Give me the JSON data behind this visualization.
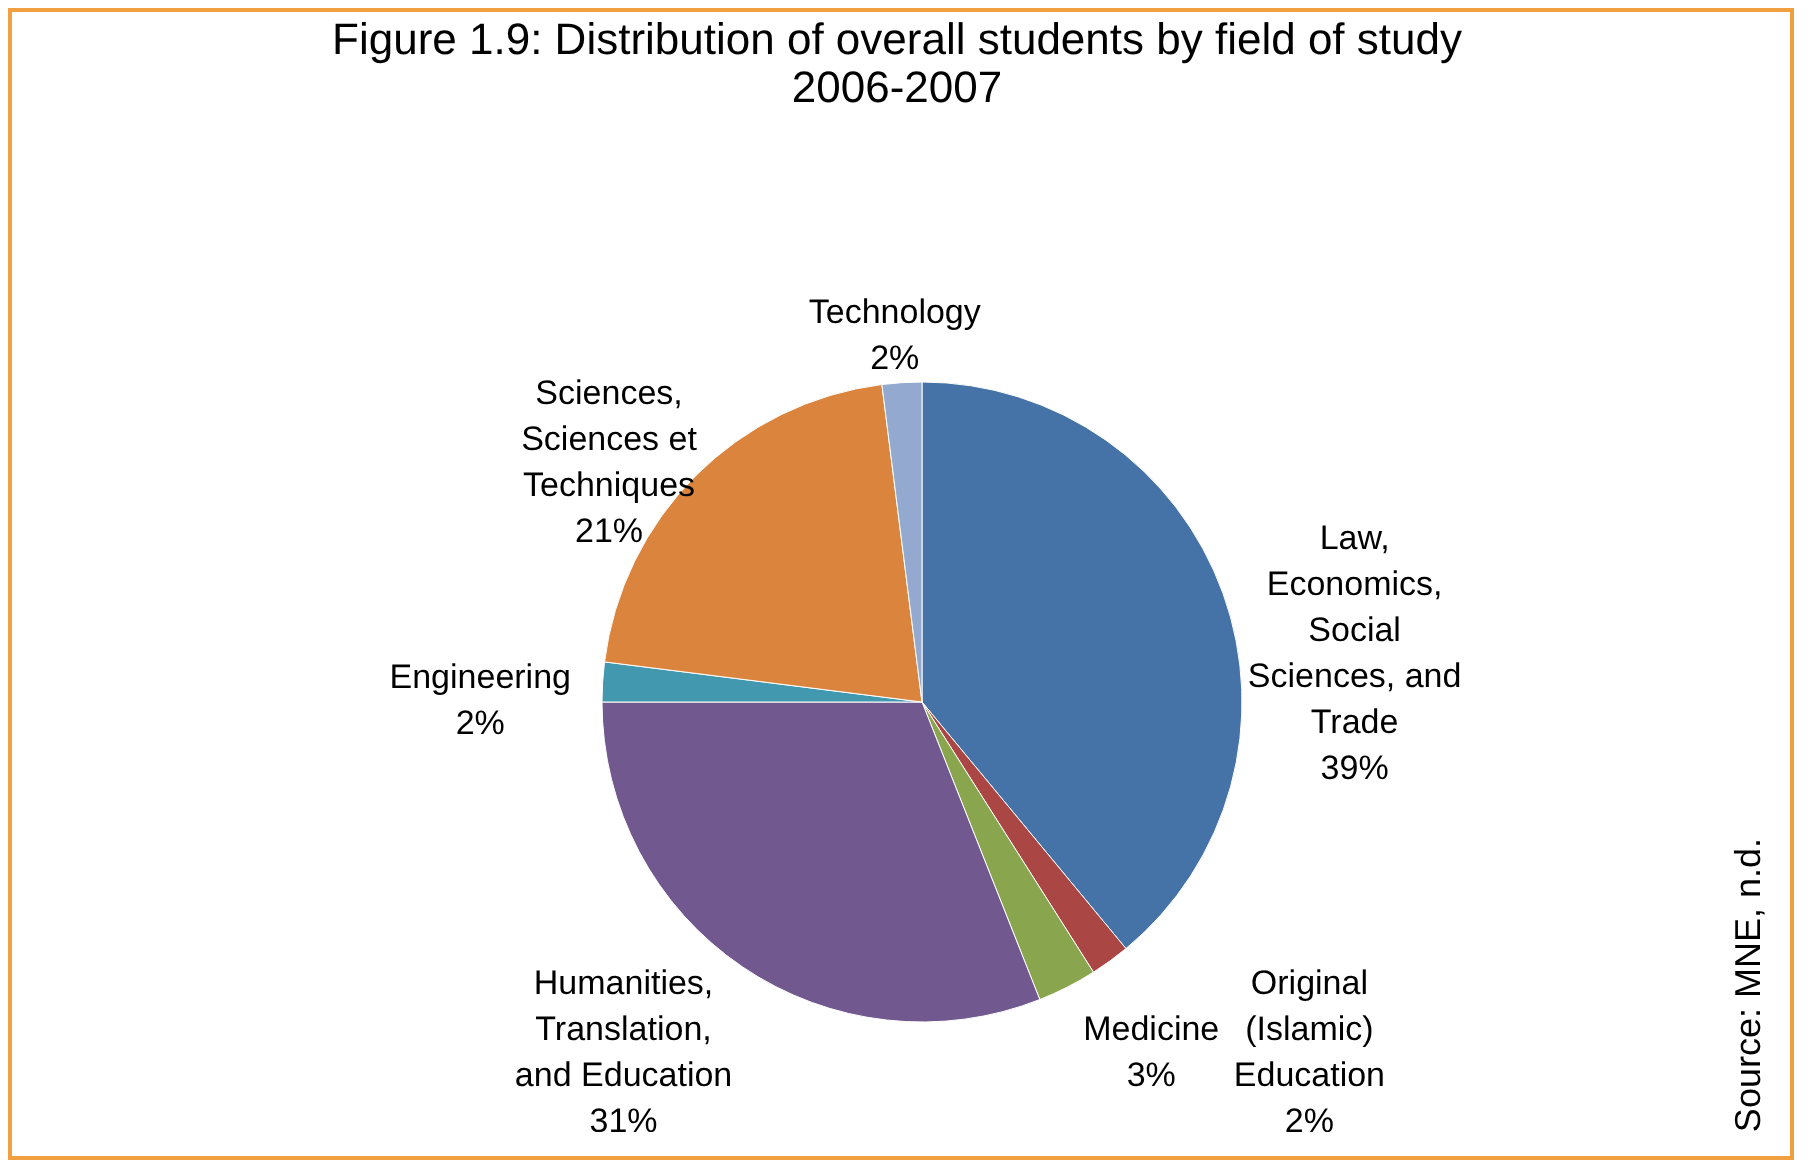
{
  "chart_data": {
    "type": "pie",
    "title": "Figure 1.9: Distribution of overall students by field of study 2006-2007",
    "categories": [
      "Law, Economics, Social Sciences, and Trade",
      "Original (Islamic) Education",
      "Medicine",
      "Humanities, Translation, and Education",
      "Engineering",
      "Sciences, Sciences et Techniques",
      "Technology"
    ],
    "values": [
      39,
      2,
      3,
      31,
      2,
      21,
      2
    ],
    "colors": [
      "#4572a7",
      "#aa4643",
      "#89a54e",
      "#71588f",
      "#4198af",
      "#db843d",
      "#93a9cf"
    ],
    "value_labels": [
      "39%",
      "2%",
      "3%",
      "31%",
      "2%",
      "21%",
      "2%"
    ],
    "annotations": [
      "Source: MNE, n.d."
    ]
  }
}
